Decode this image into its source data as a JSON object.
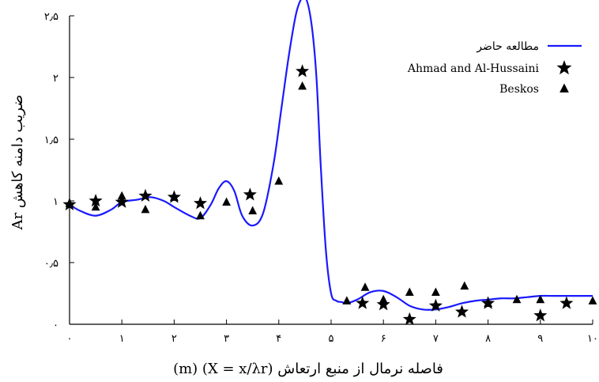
{
  "chart_data": {
    "type": "line",
    "xlabel": "فاصله نرمال از منبع ارتعاش (X = x/λr) (m)",
    "ylabel": "ضریب دامنه کاهش Ar",
    "xlim": [
      0,
      10
    ],
    "ylim": [
      0,
      2.5
    ],
    "x_ticks": [
      0,
      1,
      2,
      3,
      4,
      5,
      6,
      7,
      8,
      9,
      10
    ],
    "x_tick_labels": [
      "۰",
      "۱",
      "۲",
      "۳",
      "۴",
      "۵",
      "۶",
      "۷",
      "۸",
      "۹",
      "۱۰"
    ],
    "y_ticks": [
      0,
      0.5,
      1,
      1.5,
      2,
      2.5
    ],
    "y_tick_labels": [
      "۰",
      "۰٫۵",
      "۱",
      "۱٫۵",
      "۲",
      "۲٫۵"
    ],
    "grid": false,
    "legend_position": "top-right",
    "series": [
      {
        "name": "مطالعه حاضر",
        "kind": "line",
        "color": "#1a1aff",
        "x": [
          0,
          0.2,
          0.5,
          0.8,
          1.0,
          1.3,
          1.55,
          1.8,
          2.0,
          2.3,
          2.5,
          2.7,
          2.85,
          3.0,
          3.15,
          3.3,
          3.5,
          3.7,
          3.9,
          4.05,
          4.2,
          4.35,
          4.5,
          4.62,
          4.72,
          4.8,
          4.9,
          5.0,
          5.1,
          5.2,
          5.3,
          5.5,
          5.75,
          6.0,
          6.25,
          6.5,
          6.75,
          7.0,
          7.25,
          7.5,
          7.75,
          8.0,
          8.25,
          8.5,
          8.75,
          9.0,
          9.25,
          9.5,
          9.75,
          10.0
        ],
        "y": [
          0.97,
          0.92,
          0.88,
          0.93,
          0.99,
          1.01,
          1.03,
          1.0,
          0.95,
          0.88,
          0.86,
          0.97,
          1.1,
          1.16,
          1.08,
          0.88,
          0.8,
          0.9,
          1.3,
          1.75,
          2.2,
          2.55,
          2.65,
          2.45,
          2.0,
          1.3,
          0.6,
          0.25,
          0.19,
          0.18,
          0.17,
          0.2,
          0.26,
          0.27,
          0.22,
          0.15,
          0.12,
          0.12,
          0.14,
          0.17,
          0.19,
          0.2,
          0.21,
          0.21,
          0.22,
          0.23,
          0.23,
          0.23,
          0.23,
          0.23
        ]
      },
      {
        "name": "Ahmad and Al-Hussaini",
        "kind": "star",
        "color": "#000000",
        "x": [
          0.0,
          0.5,
          1.0,
          1.45,
          2.0,
          2.5,
          3.45,
          4.45,
          5.6,
          6.0,
          6.5,
          7.0,
          7.5,
          8.0,
          9.0,
          9.5
        ],
        "y": [
          0.97,
          1.0,
          0.99,
          1.04,
          1.03,
          0.98,
          1.05,
          2.05,
          0.17,
          0.16,
          0.04,
          0.15,
          0.1,
          0.17,
          0.07,
          0.17
        ]
      },
      {
        "name": "Beskos",
        "kind": "triangle",
        "color": "#000000",
        "x": [
          0.0,
          0.5,
          1.0,
          1.45,
          2.0,
          2.5,
          3.0,
          3.5,
          4.0,
          4.45,
          5.3,
          5.65,
          6.0,
          6.5,
          7.0,
          7.55,
          8.0,
          8.55,
          9.0,
          10.0
        ],
        "y": [
          0.98,
          0.95,
          1.04,
          0.93,
          1.03,
          0.88,
          0.99,
          0.92,
          1.16,
          1.93,
          0.19,
          0.3,
          0.2,
          0.26,
          0.26,
          0.31,
          0.17,
          0.2,
          0.2,
          0.19
        ]
      }
    ]
  }
}
